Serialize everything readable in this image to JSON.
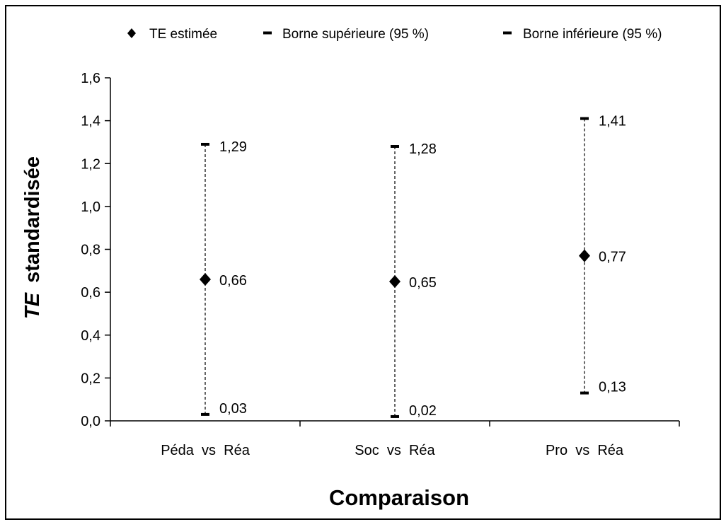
{
  "chart_data": {
    "type": "scatter",
    "categories": [
      "Péda  vs  Réa",
      "Soc  vs  Réa",
      "Pro  vs  Réa"
    ],
    "series": [
      {
        "name": "TE estimée",
        "values": [
          0.66,
          0.65,
          0.77
        ],
        "marker": "diamond"
      },
      {
        "name": "Borne supérieure (95 %)",
        "values": [
          1.29,
          1.28,
          1.41
        ],
        "marker": "dash"
      },
      {
        "name": "Borne inférieure (95 %)",
        "values": [
          0.03,
          0.02,
          0.13
        ],
        "marker": "dash"
      }
    ],
    "point_labels": {
      "estimate": [
        "0,66",
        "0,65",
        "0,77"
      ],
      "upper": [
        "1,29",
        "1,28",
        "1,41"
      ],
      "lower": [
        "0,03",
        "0,02",
        "0,13"
      ]
    },
    "xlabel": "Comparaison",
    "ylabel": {
      "italic_part": "TE",
      "rest": "standardisée"
    },
    "ylim": [
      0,
      1.6
    ],
    "yticks": [
      {
        "value": 0.0,
        "label": "0,0"
      },
      {
        "value": 0.2,
        "label": "0,2"
      },
      {
        "value": 0.4,
        "label": "0,4"
      },
      {
        "value": 0.6,
        "label": "0,6"
      },
      {
        "value": 0.8,
        "label": "0,8"
      },
      {
        "value": 1.0,
        "label": "1,0"
      },
      {
        "value": 1.2,
        "label": "1,2"
      },
      {
        "value": 1.4,
        "label": "1,4"
      },
      {
        "value": 1.6,
        "label": "1,6"
      }
    ],
    "grid": false,
    "legend": {
      "placement": "top",
      "entries": [
        "TE estimée",
        "Borne supérieure (95 %)",
        "Borne inférieure (95 %)"
      ]
    },
    "colors": {
      "marker": "#000000",
      "errorbar": "#000000",
      "axis": "#000000"
    }
  }
}
